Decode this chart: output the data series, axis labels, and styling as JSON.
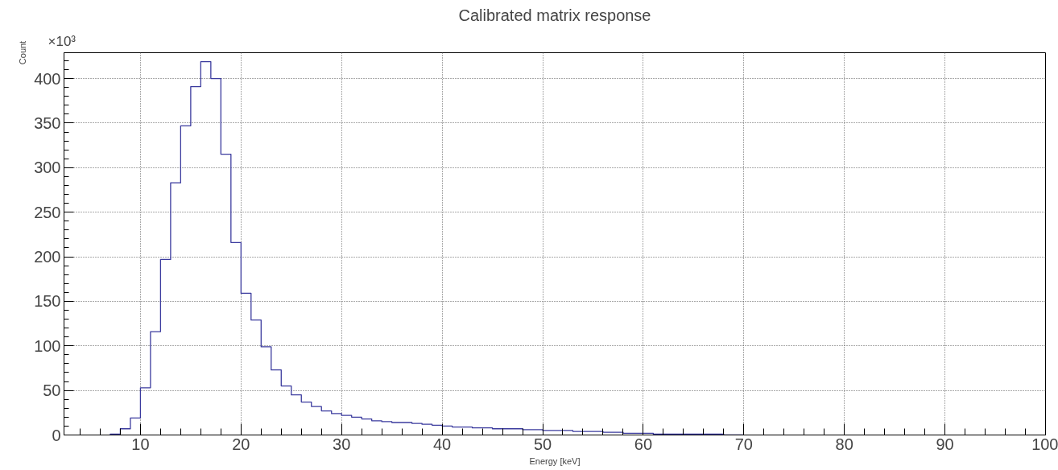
{
  "chart_data": {
    "type": "histogram",
    "title": "Calibrated matrix response",
    "xlabel": "Energy [keV]",
    "ylabel": "Count",
    "annotations": [
      "×10³"
    ],
    "bins": [
      7,
      8,
      9,
      10,
      11,
      12,
      13,
      14,
      15,
      16,
      17,
      18,
      19,
      20,
      21,
      22,
      23,
      24,
      25,
      26,
      27,
      28,
      29,
      30,
      31,
      32,
      33,
      34,
      35,
      36,
      37,
      38,
      39,
      40,
      41,
      42,
      43,
      44,
      45,
      46,
      47,
      48,
      49,
      50,
      51,
      52,
      53,
      54,
      55,
      56,
      57,
      58,
      59,
      60,
      61,
      62,
      63,
      64,
      65,
      66,
      67,
      68,
      69,
      70
    ],
    "values": [
      1,
      7,
      19,
      53,
      116,
      197,
      283,
      347,
      391,
      419,
      400,
      315,
      216,
      159,
      129,
      99,
      73,
      55,
      45,
      37,
      32,
      27,
      24,
      22,
      20,
      18,
      16,
      15,
      14,
      14,
      13,
      12,
      11,
      10,
      9,
      9,
      8,
      8,
      7,
      7,
      7,
      6,
      6,
      5,
      5,
      5,
      4,
      4,
      4,
      3,
      3,
      2,
      2,
      2,
      1,
      1,
      1,
      1,
      1,
      1,
      1,
      0,
      0
    ],
    "color": "#3b3b9e",
    "xlim": [
      2.4,
      100
    ],
    "xticks": [
      10,
      20,
      30,
      40,
      50,
      60,
      70,
      80,
      90,
      100
    ],
    "ylim": [
      0,
      429
    ],
    "yticks": [
      0,
      50,
      100,
      150,
      200,
      250,
      300,
      350,
      400
    ],
    "grid": true
  }
}
